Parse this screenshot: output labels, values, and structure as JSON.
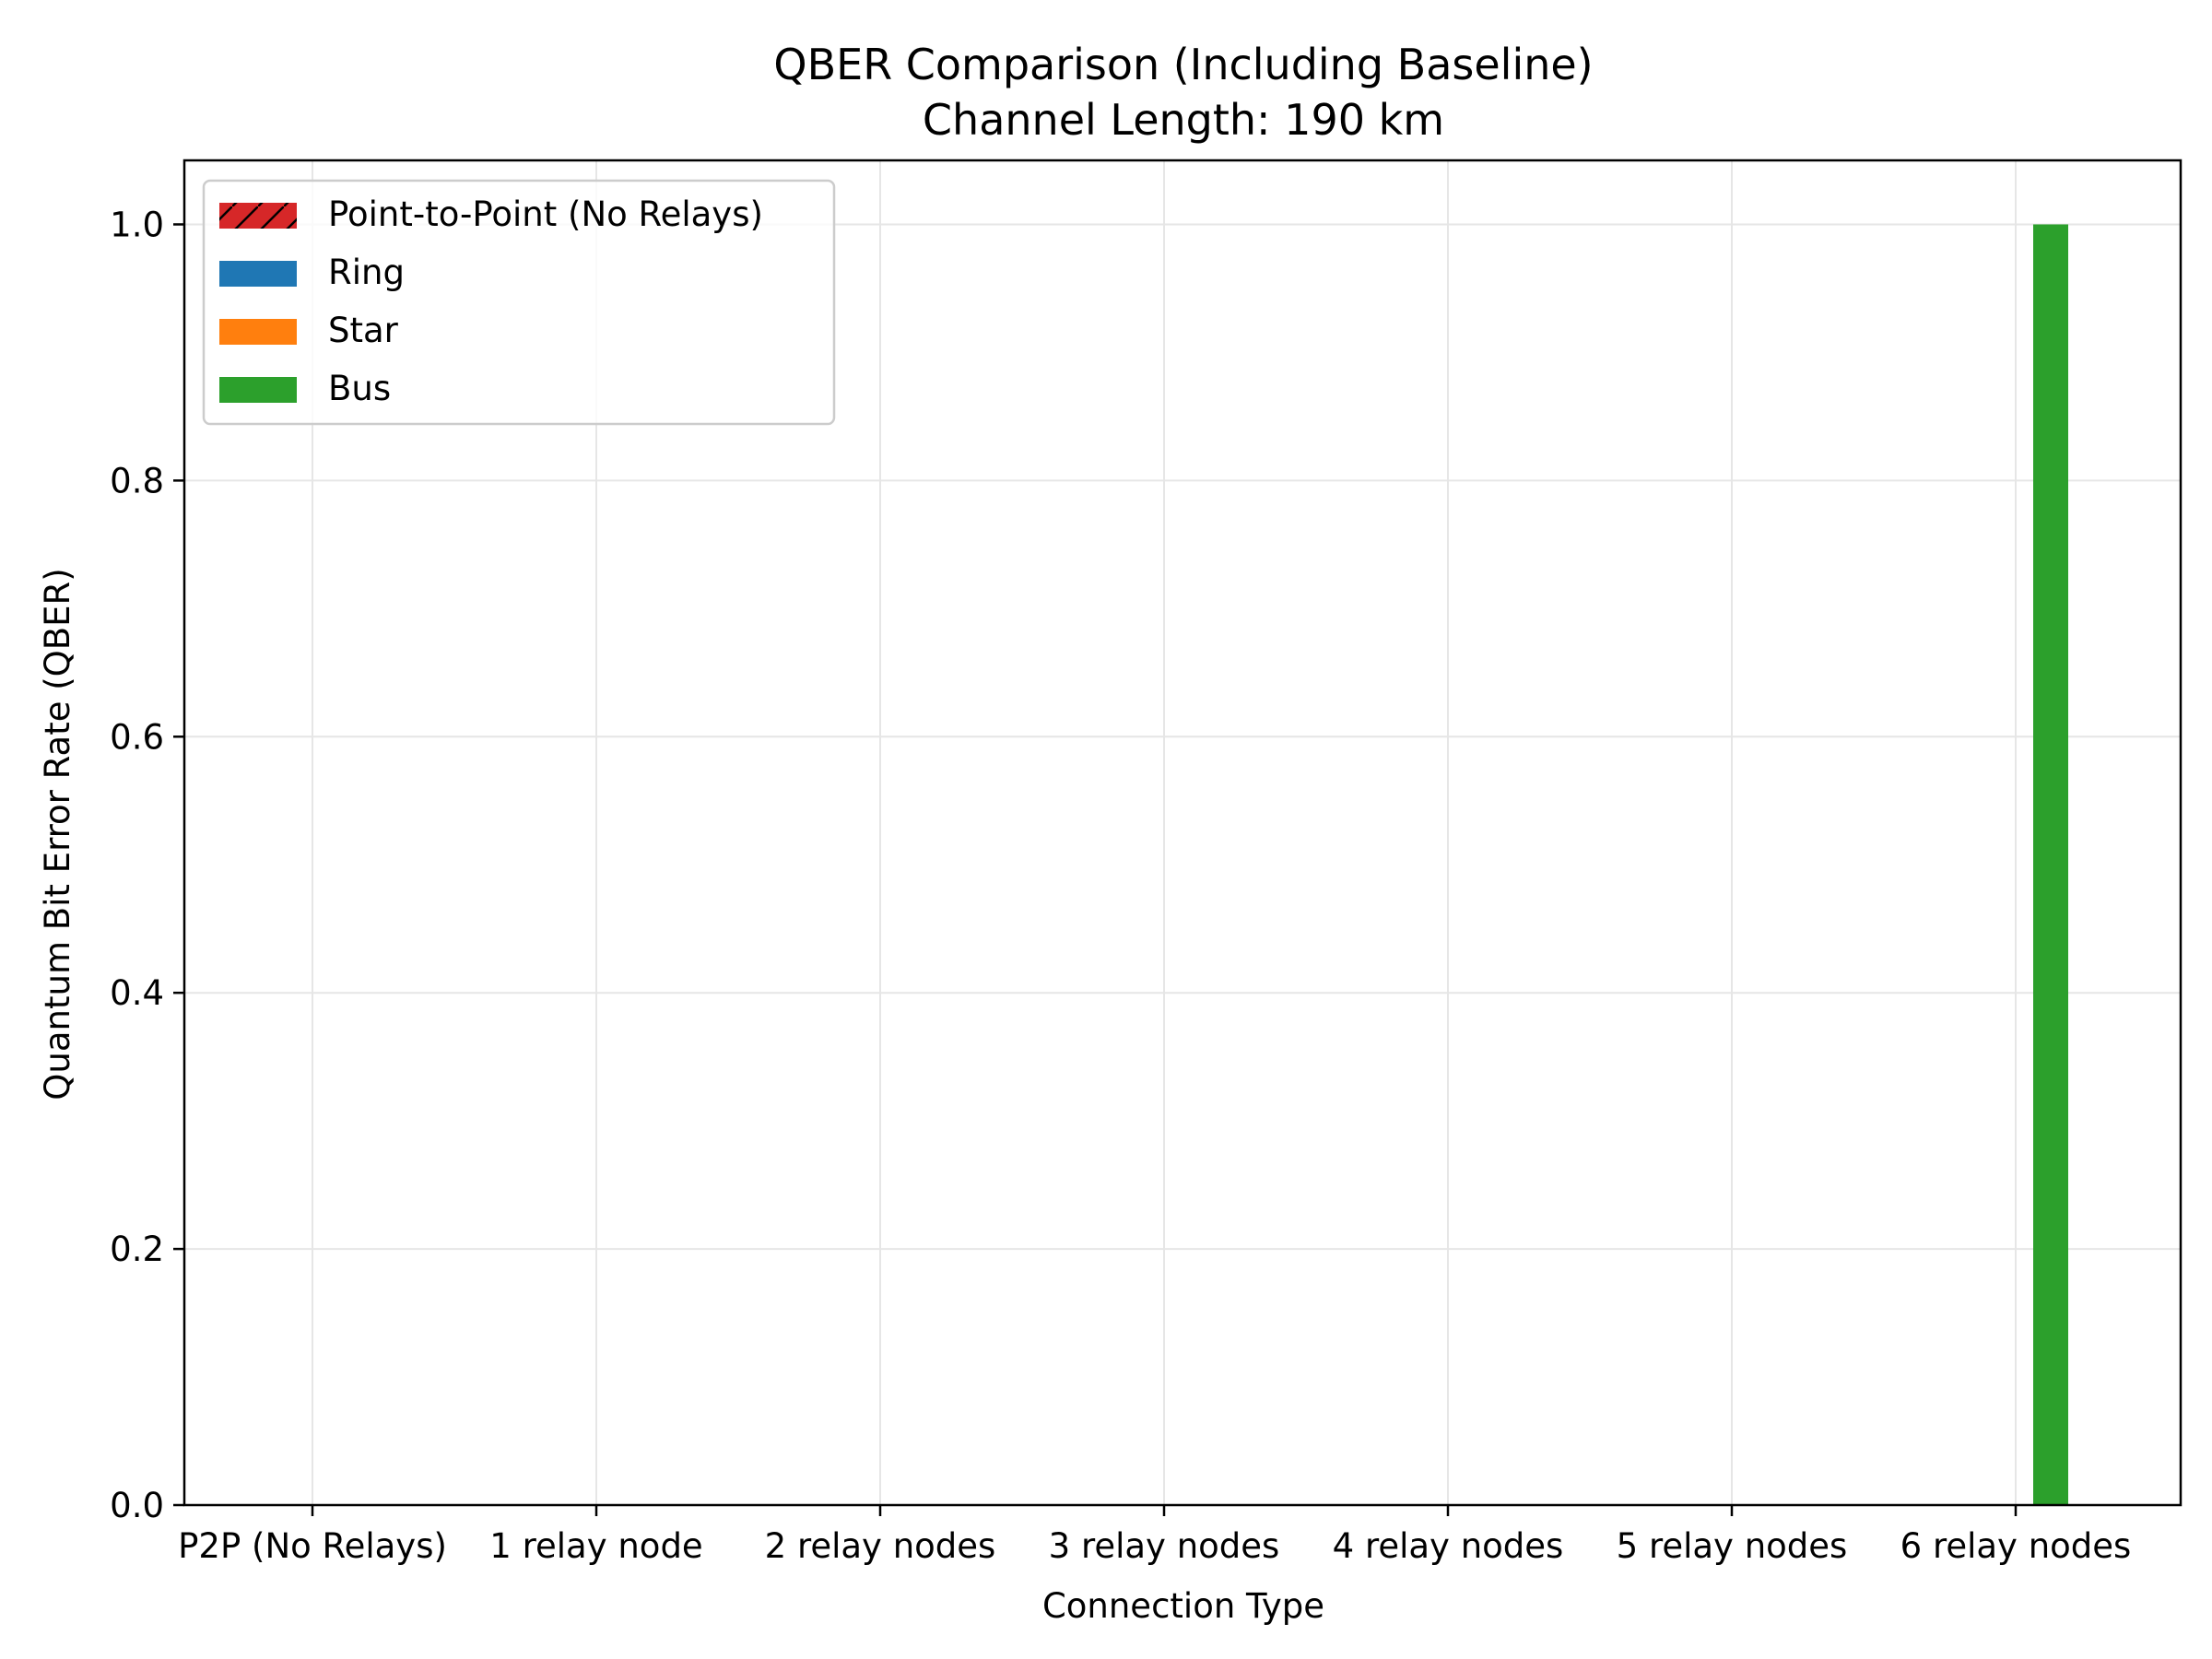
{
  "chart_data": {
    "type": "bar",
    "title": "QBER Comparison (Including Baseline)",
    "subtitle": "Channel Length: 190 km",
    "xlabel": "Connection Type",
    "ylabel": "Quantum Bit Error Rate (QBER)",
    "ylim": [
      0,
      1.05
    ],
    "yticks": [
      "0.0",
      "0.2",
      "0.4",
      "0.6",
      "0.8",
      "1.0"
    ],
    "ytick_values": [
      0,
      0.2,
      0.4,
      0.6,
      0.8,
      1.0
    ],
    "categories": [
      "P2P (No Relays)",
      "1 relay node",
      "2 relay nodes",
      "3 relay nodes",
      "4 relay nodes",
      "5 relay nodes",
      "6 relay nodes"
    ],
    "grid": true,
    "legend_position": "upper-left",
    "series": [
      {
        "name": "Point-to-Point (No Relays)",
        "color": "#d62728",
        "hatch": "diagonal",
        "values": [
          0,
          null,
          null,
          null,
          null,
          null,
          null
        ]
      },
      {
        "name": "Ring",
        "color": "#1f77b4",
        "values": [
          null,
          0,
          0,
          0,
          0,
          0,
          0
        ]
      },
      {
        "name": "Star",
        "color": "#ff7f0e",
        "values": [
          null,
          0,
          0,
          0,
          0,
          0,
          0
        ]
      },
      {
        "name": "Bus",
        "color": "#2ca02c",
        "values": [
          null,
          0,
          0,
          0,
          0,
          0,
          1.0
        ]
      }
    ]
  }
}
